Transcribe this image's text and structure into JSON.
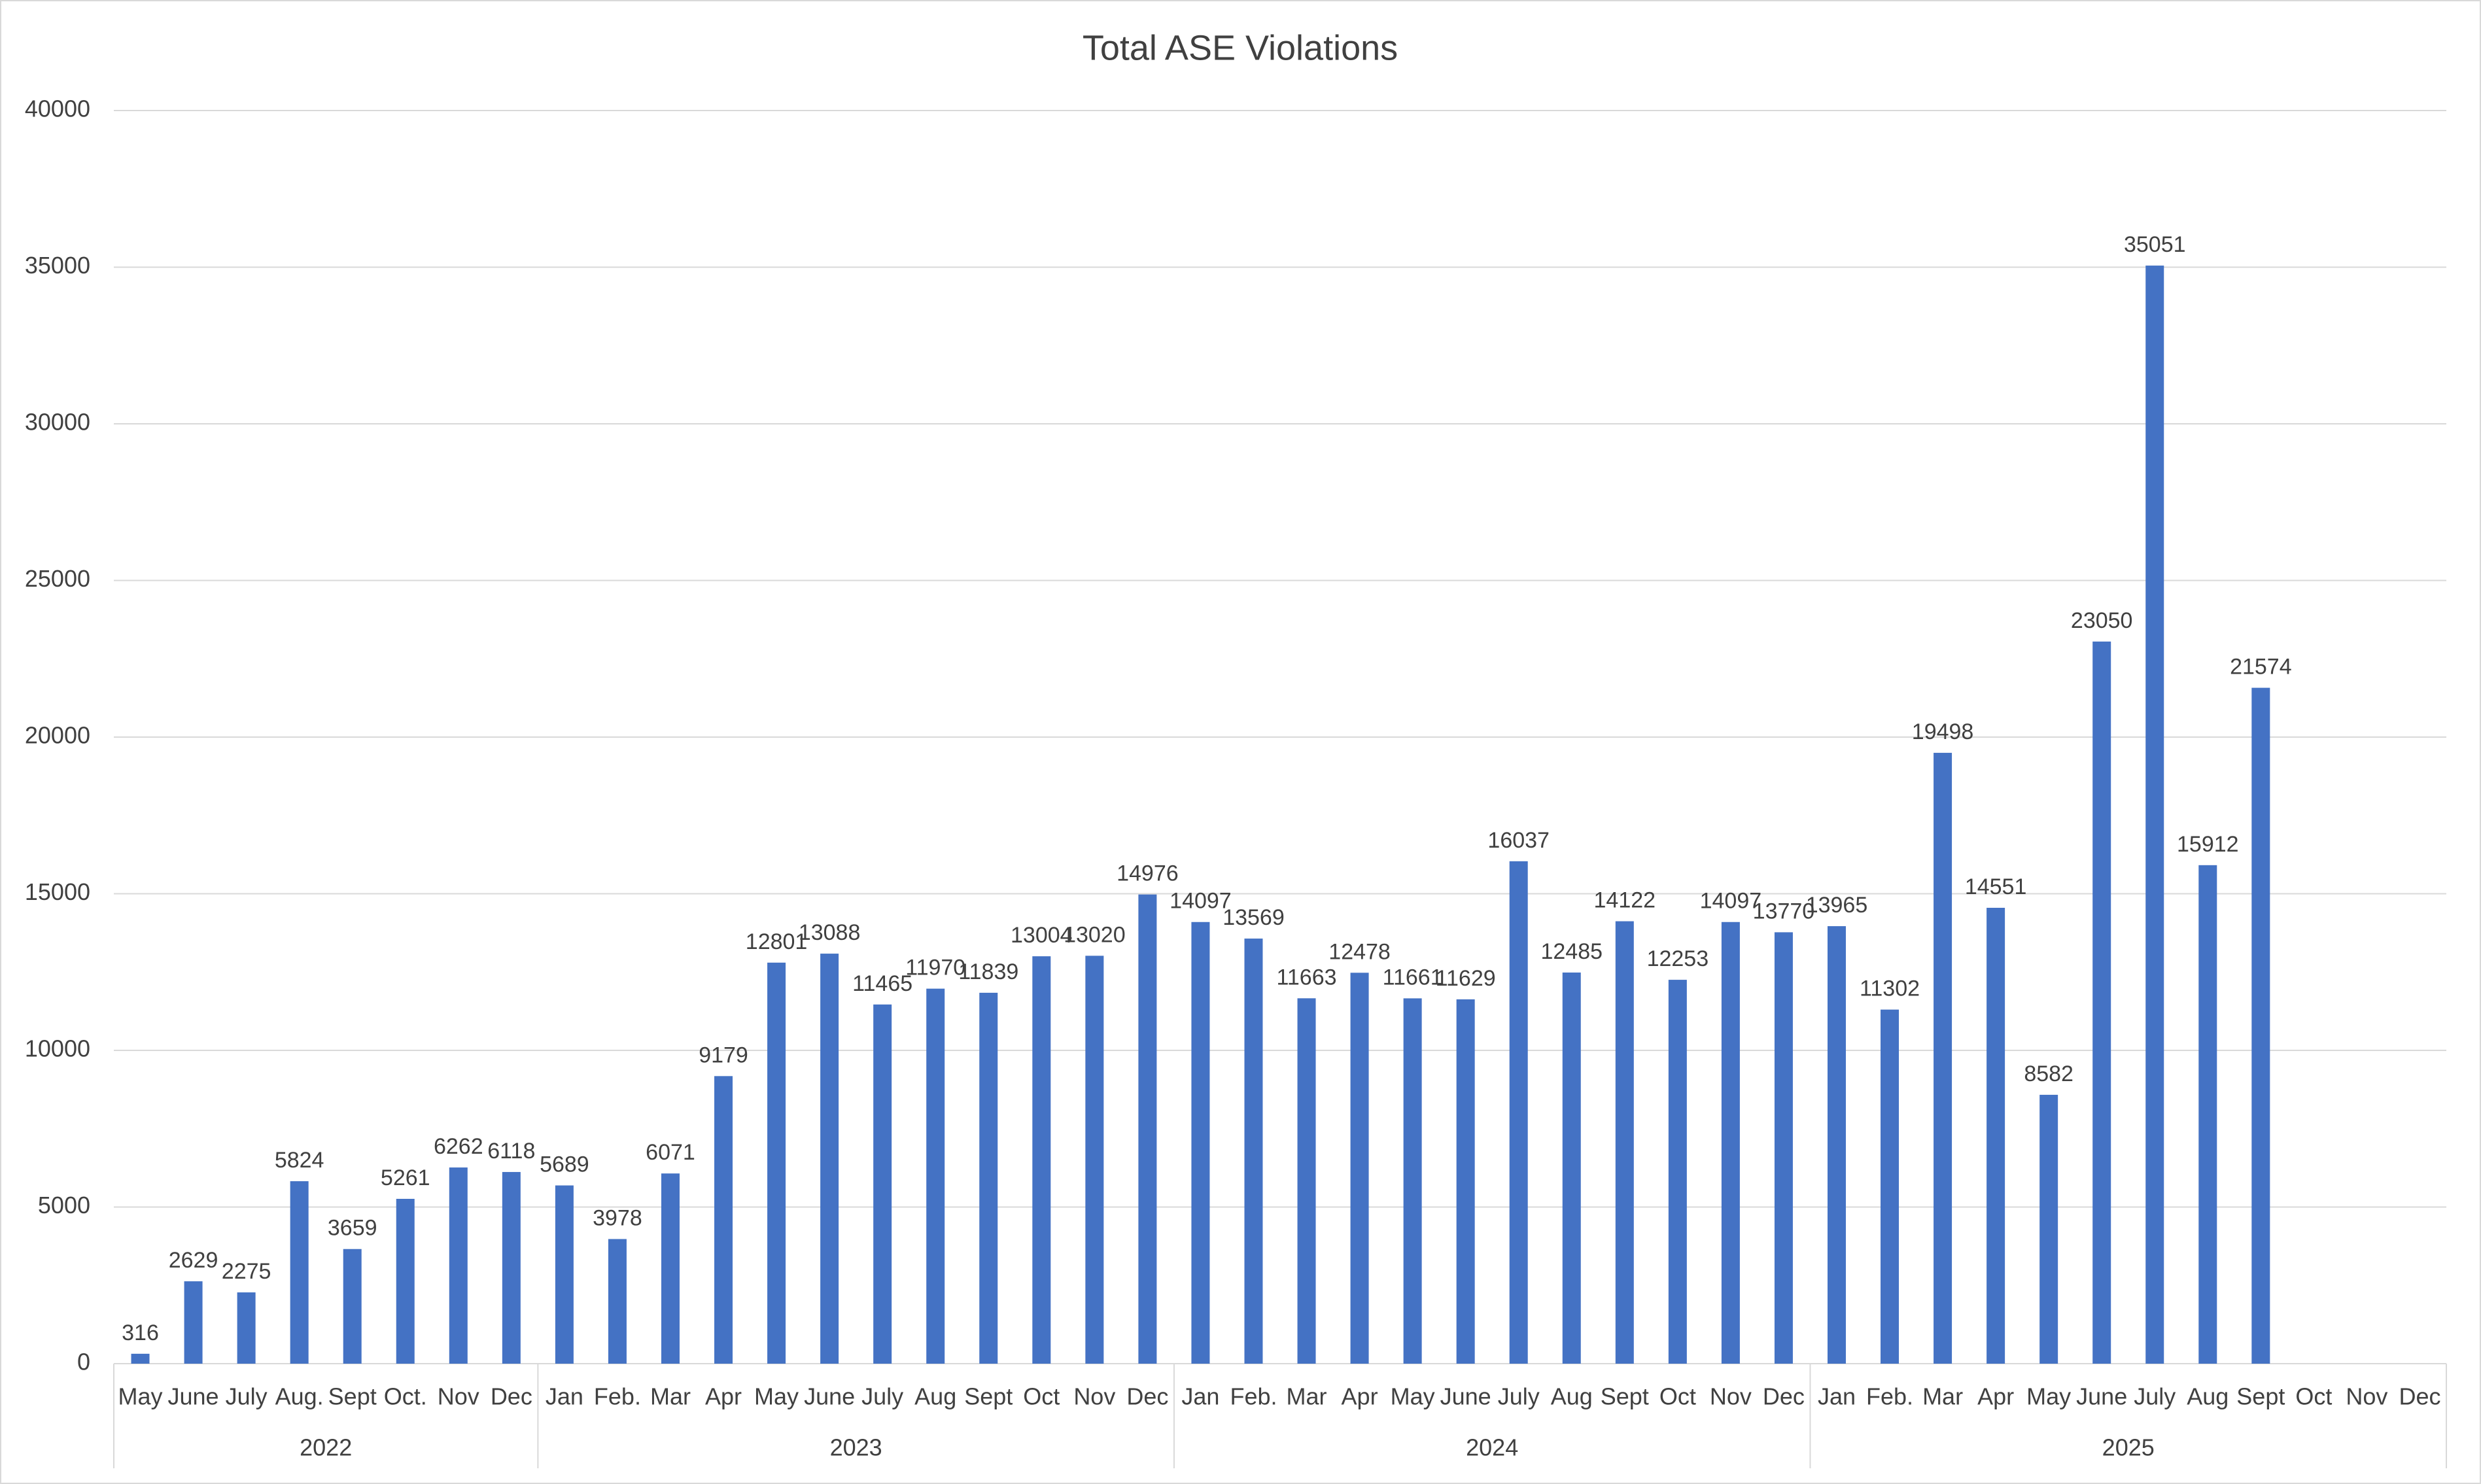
{
  "chart_data": {
    "type": "bar",
    "title": "Total ASE Violations",
    "categories": [
      "May",
      "June",
      "July",
      "Aug.",
      "Sept",
      "Oct.",
      "Nov",
      "Dec",
      "Jan",
      "Feb.",
      "Mar",
      "Apr",
      "May",
      "June",
      "July",
      "Aug",
      "Sept",
      "Oct",
      "Nov",
      "Dec",
      "Jan",
      "Feb.",
      "Mar",
      "Apr",
      "May",
      "June",
      "July",
      "Aug",
      "Sept",
      "Oct",
      "Nov",
      "Dec",
      "Jan",
      "Feb.",
      "Mar",
      "Apr",
      "May",
      "June",
      "July",
      "Aug",
      "Sept",
      "Oct",
      "Nov",
      "Dec"
    ],
    "values": [
      316,
      2629,
      2275,
      5824,
      3659,
      5261,
      6262,
      6118,
      5689,
      3978,
      6071,
      9179,
      12801,
      13088,
      11465,
      11970,
      11839,
      13004,
      13020,
      14976,
      14097,
      13569,
      11663,
      12478,
      11661,
      11629,
      16037,
      12485,
      14122,
      12253,
      14097,
      13770,
      13965,
      11302,
      19498,
      14551,
      8582,
      23050,
      35051,
      15912,
      21574,
      null,
      null,
      null
    ],
    "groups": [
      {
        "label": "2022",
        "span": 8
      },
      {
        "label": "2023",
        "span": 12
      },
      {
        "label": "2024",
        "span": 12
      },
      {
        "label": "2025",
        "span": 12
      }
    ],
    "color": "#4472c4",
    "ylim": [
      0,
      40000
    ],
    "yticks": [
      0,
      5000,
      10000,
      15000,
      20000,
      25000,
      30000,
      35000,
      40000
    ],
    "grid": true
  }
}
